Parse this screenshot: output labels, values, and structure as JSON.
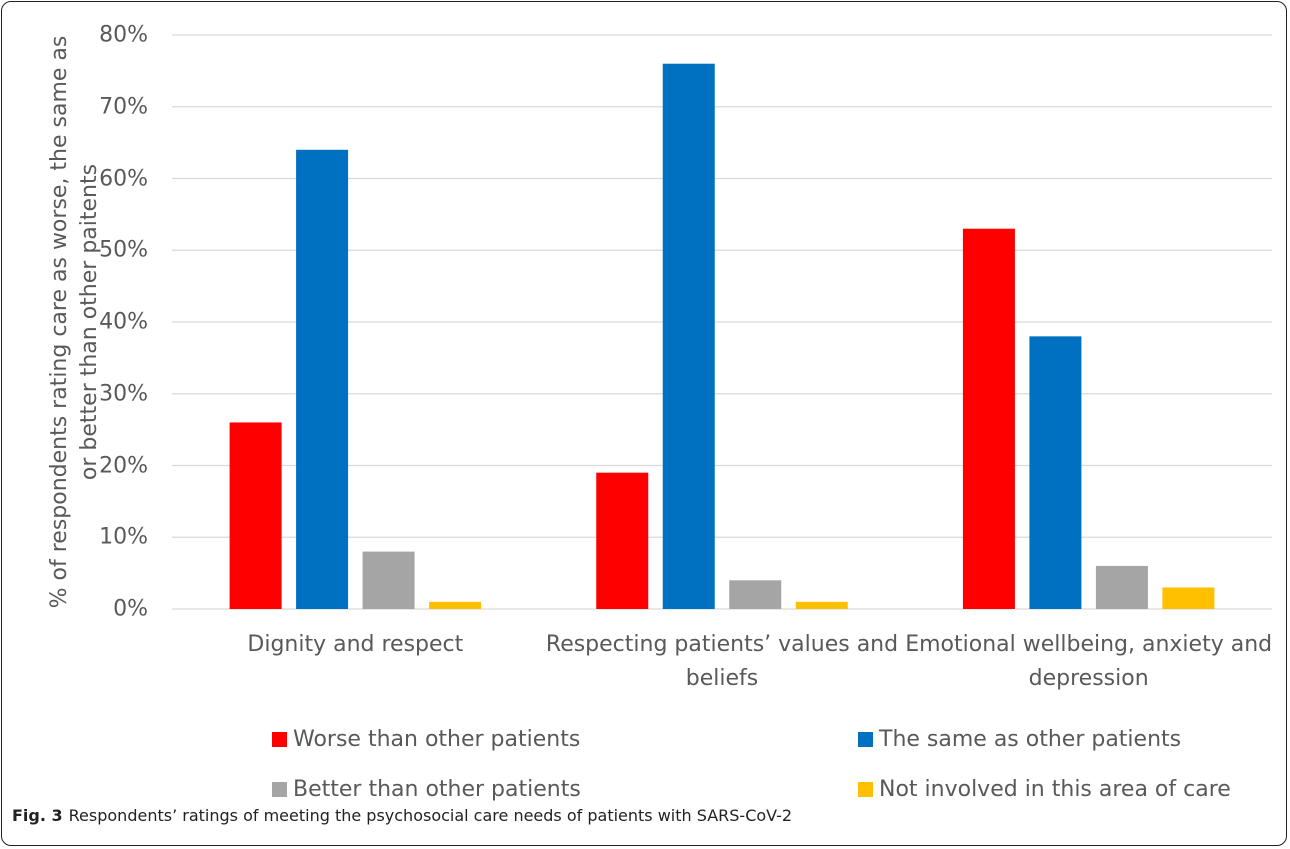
{
  "chart_data": {
    "type": "bar",
    "ylabel": "% of respondents rating care as worse, the same as or better than other paitents",
    "categories": [
      "Dignity and respect",
      "Respecting patients’ values and beliefs",
      "Emotional wellbeing, anxiety and depression"
    ],
    "series": [
      {
        "name": "Worse than other patients",
        "color": "#ff0000",
        "values": [
          26,
          19,
          53
        ]
      },
      {
        "name": "The same as other patients",
        "color": "#0070c0",
        "values": [
          64,
          76,
          38
        ]
      },
      {
        "name": "Better than other patients",
        "color": "#a5a5a5",
        "values": [
          8,
          4,
          6
        ]
      },
      {
        "name": "Not involved in this area of care",
        "color": "#ffc000",
        "values": [
          1,
          1,
          3
        ]
      }
    ],
    "ylim": [
      0,
      80
    ],
    "yticks": [
      {
        "value": 0,
        "label": "0%"
      },
      {
        "value": 10,
        "label": "10%"
      },
      {
        "value": 20,
        "label": "20%"
      },
      {
        "value": 30,
        "label": "30%"
      },
      {
        "value": 40,
        "label": "40%"
      },
      {
        "value": 50,
        "label": "50%"
      },
      {
        "value": 60,
        "label": "60%"
      },
      {
        "value": 70,
        "label": "70%"
      },
      {
        "value": 80,
        "label": "80%"
      }
    ],
    "grid": true,
    "caption_label": "Fig. 3",
    "caption": "Respondents’ ratings of meeting the psychosocial care needs of patients with SARS-CoV-2"
  }
}
